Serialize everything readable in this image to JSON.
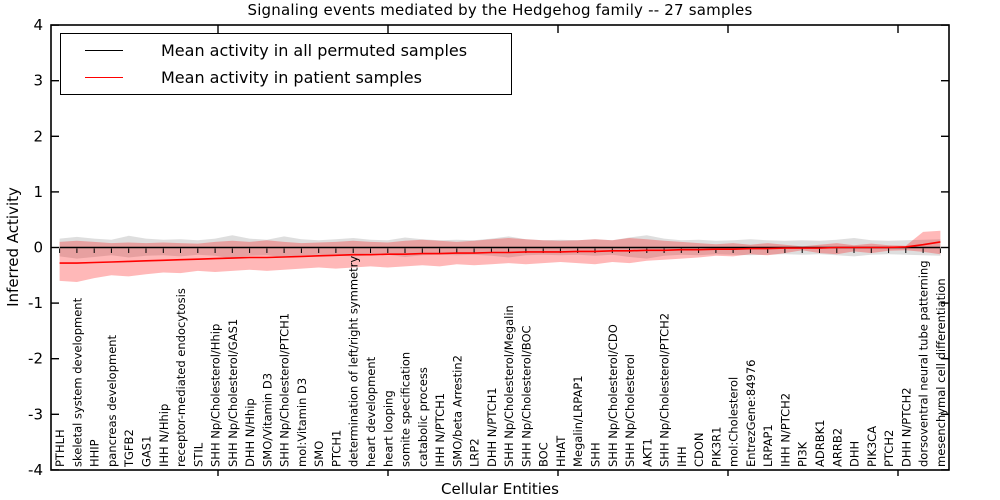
{
  "figure": {
    "title": "Signaling events mediated by the Hedgehog family -- 27 samples",
    "xlabel": "Cellular Entities",
    "ylabel": "Inferred Activity"
  },
  "legend": {
    "entries": [
      {
        "label": "Mean activity in all permuted samples",
        "color": "#000000"
      },
      {
        "label": "Mean activity in patient samples",
        "color": "#ff0000"
      }
    ]
  },
  "chart_data": {
    "type": "line",
    "title": "Signaling events mediated by the Hedgehog family -- 27 samples",
    "xlabel": "Cellular Entities",
    "ylabel": "Inferred Activity",
    "ylim": [
      -4,
      4
    ],
    "yticks": [
      4,
      3,
      2,
      1,
      0,
      -1,
      -2,
      -3,
      -4
    ],
    "x_tick_rotation": 90,
    "grid": false,
    "legend_position": "upper left",
    "categories": [
      "PTHLH",
      "skeletal system development",
      "HHIP",
      "pancreas development",
      "TGFB2",
      "GAS1",
      "IHH N/Hhip",
      "receptor-mediated endocytosis",
      "STIL",
      "SHH Np/Cholesterol/Hhip",
      "SHH Np/Cholesterol/GAS1",
      "DHH N/Hhip",
      "SMO/Vitamin D3",
      "SHH Np/Cholesterol/PTCH1",
      "mol:Vitamin D3",
      "SMO",
      "PTCH1",
      "determination of left/right symmetry",
      "heart development",
      "heart looping",
      "somite specification",
      "catabolic process",
      "IHH N/PTCH1",
      "SMO/beta Arrestin2",
      "LRP2",
      "DHH N/PTCH1",
      "SHH Np/Cholesterol/Megalin",
      "SHH Np/Cholesterol/BOC",
      "BOC",
      "HHAT",
      "Megalin/LRPAP1",
      "SHH",
      "SHH Np/Cholesterol/CDO",
      "SHH Np/Cholesterol",
      "AKT1",
      "SHH Np/Cholesterol/PTCH2",
      "IHH",
      "CDON",
      "PIK3R1",
      "mol:Cholesterol",
      "EntrezGene:84976",
      "LRPAP1",
      "IHH N/PTCH2",
      "PI3K",
      "ADRBK1",
      "ARRB2",
      "DHH",
      "PIK3CA",
      "PTCH2",
      "DHH N/PTCH2",
      "dorsoventral neural tube patterning",
      "mesenchymal cell differentiation"
    ],
    "series": [
      {
        "name": "Mean activity in all permuted samples",
        "color": "#000000",
        "marker": "tick-below",
        "values": [
          0,
          0,
          0,
          0,
          0,
          0,
          0,
          0,
          0,
          0,
          0,
          0,
          0,
          0,
          0,
          0,
          0,
          0,
          0,
          0,
          0,
          0,
          0,
          0,
          0,
          0,
          0,
          0,
          0,
          0,
          0,
          0,
          0,
          0,
          0,
          0,
          0,
          0,
          0,
          0,
          0,
          0,
          0,
          0,
          0,
          0,
          0,
          0,
          0,
          0,
          0,
          0
        ]
      },
      {
        "name": "Mean activity in patient samples",
        "color": "#ff0000",
        "marker": "none",
        "values": [
          -0.28,
          -0.28,
          -0.27,
          -0.26,
          -0.25,
          -0.24,
          -0.23,
          -0.22,
          -0.21,
          -0.2,
          -0.19,
          -0.18,
          -0.18,
          -0.17,
          -0.16,
          -0.15,
          -0.14,
          -0.13,
          -0.13,
          -0.12,
          -0.12,
          -0.11,
          -0.11,
          -0.1,
          -0.1,
          -0.09,
          -0.09,
          -0.08,
          -0.08,
          -0.08,
          -0.07,
          -0.07,
          -0.06,
          -0.06,
          -0.05,
          -0.05,
          -0.04,
          -0.04,
          -0.03,
          -0.03,
          -0.02,
          -0.02,
          -0.01,
          -0.01,
          -0.01,
          0.0,
          0.0,
          0.0,
          0.0,
          0.01,
          0.05,
          0.1
        ]
      }
    ],
    "bands": [
      {
        "name": "permuted samples std band",
        "color": "#000000",
        "opacity": 0.13,
        "upper": [
          0.16,
          0.19,
          0.16,
          0.14,
          0.21,
          0.16,
          0.14,
          0.15,
          0.13,
          0.16,
          0.22,
          0.16,
          0.14,
          0.2,
          0.15,
          0.13,
          0.15,
          0.17,
          0.14,
          0.13,
          0.18,
          0.15,
          0.13,
          0.14,
          0.13,
          0.16,
          0.2,
          0.15,
          0.13,
          0.14,
          0.13,
          0.15,
          0.13,
          0.18,
          0.22,
          0.16,
          0.13,
          0.14,
          0.12,
          0.13,
          0.15,
          0.13,
          0.12,
          0.13,
          0.12,
          0.14,
          0.17,
          0.13,
          0.12,
          0.13,
          0.14,
          0.15
        ],
        "lower": [
          -0.16,
          -0.2,
          -0.17,
          -0.14,
          -0.18,
          -0.15,
          -0.14,
          -0.16,
          -0.13,
          -0.15,
          -0.2,
          -0.15,
          -0.14,
          -0.18,
          -0.14,
          -0.13,
          -0.15,
          -0.16,
          -0.14,
          -0.13,
          -0.17,
          -0.14,
          -0.13,
          -0.14,
          -0.13,
          -0.15,
          -0.18,
          -0.14,
          -0.13,
          -0.14,
          -0.13,
          -0.15,
          -0.13,
          -0.17,
          -0.2,
          -0.15,
          -0.13,
          -0.14,
          -0.12,
          -0.13,
          -0.14,
          -0.13,
          -0.12,
          -0.13,
          -0.12,
          -0.14,
          -0.16,
          -0.13,
          -0.12,
          -0.13,
          -0.14,
          -0.15
        ]
      },
      {
        "name": "patient samples std band",
        "color": "#ff0000",
        "opacity": 0.28,
        "upper": [
          0.1,
          0.12,
          0.1,
          0.08,
          0.09,
          0.08,
          0.09,
          0.08,
          0.07,
          0.1,
          0.12,
          0.1,
          0.13,
          0.1,
          0.08,
          0.09,
          0.1,
          0.12,
          0.1,
          0.09,
          0.12,
          0.14,
          0.12,
          0.1,
          0.12,
          0.15,
          0.17,
          0.15,
          0.13,
          0.12,
          0.13,
          0.15,
          0.13,
          0.17,
          0.15,
          0.12,
          0.1,
          0.08,
          0.06,
          0.08,
          0.05,
          0.08,
          0.05,
          0.02,
          0.05,
          0.08,
          0.04,
          0.07,
          0.04,
          0.03,
          0.28,
          0.3
        ],
        "lower": [
          -0.6,
          -0.62,
          -0.55,
          -0.5,
          -0.52,
          -0.48,
          -0.45,
          -0.46,
          -0.42,
          -0.44,
          -0.42,
          -0.4,
          -0.42,
          -0.4,
          -0.38,
          -0.36,
          -0.38,
          -0.36,
          -0.34,
          -0.36,
          -0.34,
          -0.32,
          -0.34,
          -0.3,
          -0.32,
          -0.3,
          -0.28,
          -0.3,
          -0.28,
          -0.26,
          -0.28,
          -0.3,
          -0.26,
          -0.28,
          -0.24,
          -0.22,
          -0.2,
          -0.18,
          -0.15,
          -0.16,
          -0.12,
          -0.14,
          -0.1,
          -0.05,
          -0.1,
          -0.12,
          -0.07,
          -0.1,
          -0.06,
          -0.05,
          -0.08,
          -0.12
        ]
      }
    ]
  }
}
